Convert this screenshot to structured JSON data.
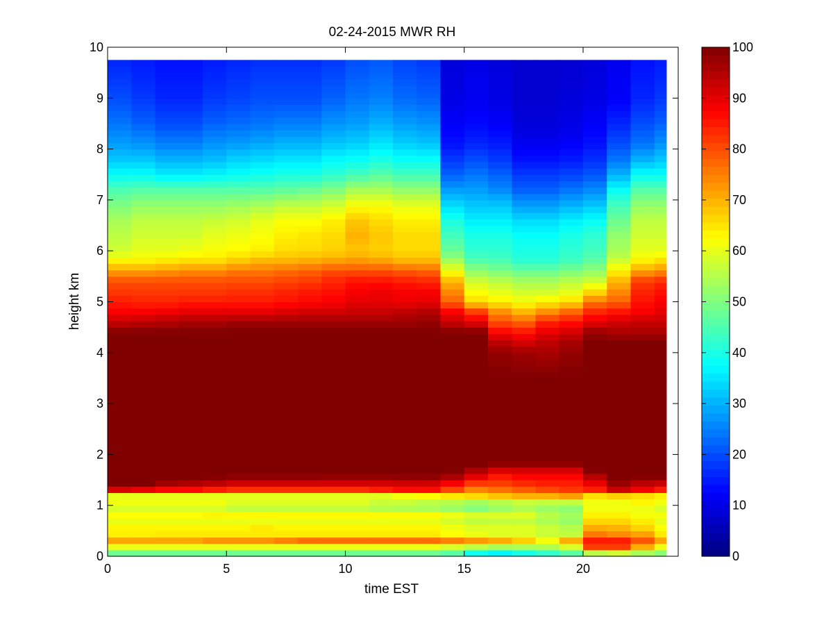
{
  "chart_data": {
    "type": "heatmap",
    "title": "02-24-2015 MWR RH",
    "xlabel": "time EST",
    "ylabel": "height km",
    "xlim": [
      0,
      24
    ],
    "ylim": [
      0,
      10
    ],
    "x_ticks": [
      0,
      5,
      10,
      15,
      20
    ],
    "y_ticks": [
      0,
      1,
      2,
      3,
      4,
      5,
      6,
      7,
      8,
      9,
      10
    ],
    "colormap": "jet",
    "color_range": [
      0,
      100
    ],
    "colorbar_ticks": [
      0,
      10,
      20,
      30,
      40,
      50,
      60,
      70,
      80,
      90,
      100
    ],
    "data_extent": {
      "x_max": 23.5,
      "y_max": 9.75
    },
    "x": [
      0,
      1,
      2,
      3,
      4,
      5,
      6,
      7,
      8,
      9,
      10,
      11,
      12,
      13,
      14,
      15,
      16,
      17,
      18,
      19,
      20,
      21,
      22,
      23
    ],
    "profile_heights": [
      0,
      0.1,
      0.2,
      0.3,
      0.4,
      0.5,
      0.6,
      0.7,
      0.8,
      0.9,
      1.0,
      1.1,
      1.2,
      1.3,
      1.4,
      1.5,
      1.6,
      1.7,
      1.8,
      1.9,
      2.0,
      2.5,
      3.0,
      3.5,
      4.0,
      4.2,
      4.4,
      4.6,
      4.8,
      5.0,
      5.2,
      5.4,
      5.6,
      5.8,
      6.0,
      6.3,
      6.6,
      6.9,
      7.2,
      7.5,
      7.8,
      8.1,
      8.5,
      9.0,
      9.75
    ],
    "series": [
      {
        "x": 0,
        "rh": [
          42,
          52,
          62,
          72,
          65,
          62,
          64,
          60,
          63,
          58,
          60,
          62,
          60,
          90,
          100,
          100,
          100,
          100,
          100,
          100,
          100,
          100,
          100,
          100,
          100,
          100,
          100,
          93,
          88,
          85,
          82,
          80,
          72,
          64,
          58,
          56,
          54,
          50,
          45,
          38,
          32,
          28,
          24,
          20,
          16
        ]
      },
      {
        "x": 1,
        "rh": [
          42,
          52,
          62,
          72,
          65,
          62,
          64,
          60,
          63,
          58,
          60,
          62,
          60,
          88,
          100,
          100,
          100,
          100,
          100,
          100,
          100,
          100,
          100,
          100,
          100,
          100,
          100,
          94,
          88,
          84,
          82,
          80,
          72,
          64,
          60,
          58,
          56,
          52,
          46,
          38,
          32,
          27,
          22,
          18,
          15
        ]
      },
      {
        "x": 2,
        "rh": [
          42,
          52,
          62,
          72,
          66,
          62,
          64,
          60,
          63,
          58,
          60,
          62,
          60,
          86,
          95,
          100,
          100,
          100,
          100,
          100,
          100,
          100,
          100,
          100,
          100,
          100,
          100,
          95,
          89,
          84,
          82,
          80,
          73,
          65,
          60,
          58,
          56,
          52,
          46,
          36,
          30,
          25,
          20,
          16,
          14
        ]
      },
      {
        "x": 3,
        "rh": [
          42,
          52,
          62,
          72,
          66,
          62,
          64,
          60,
          63,
          58,
          60,
          62,
          60,
          86,
          93,
          100,
          100,
          100,
          100,
          100,
          100,
          100,
          100,
          100,
          100,
          100,
          100,
          96,
          90,
          85,
          82,
          80,
          74,
          66,
          61,
          58,
          56,
          52,
          46,
          36,
          30,
          25,
          20,
          16,
          14
        ]
      },
      {
        "x": 4,
        "rh": [
          42,
          52,
          62,
          74,
          66,
          62,
          64,
          60,
          64,
          58,
          60,
          62,
          60,
          84,
          92,
          98,
          100,
          100,
          100,
          100,
          100,
          100,
          100,
          100,
          100,
          100,
          100,
          96,
          90,
          85,
          82,
          80,
          74,
          66,
          62,
          60,
          57,
          52,
          46,
          37,
          31,
          27,
          22,
          18,
          15
        ]
      },
      {
        "x": 5,
        "rh": [
          42,
          52,
          62,
          74,
          66,
          62,
          64,
          60,
          64,
          56,
          58,
          60,
          60,
          82,
          90,
          96,
          100,
          100,
          100,
          100,
          100,
          100,
          100,
          100,
          100,
          100,
          100,
          97,
          90,
          85,
          83,
          80,
          76,
          68,
          63,
          61,
          58,
          53,
          46,
          38,
          33,
          28,
          23,
          19,
          16
        ]
      },
      {
        "x": 6,
        "rh": [
          42,
          52,
          62,
          74,
          66,
          62,
          66,
          60,
          64,
          56,
          58,
          60,
          60,
          82,
          90,
          96,
          100,
          100,
          100,
          100,
          100,
          100,
          100,
          100,
          100,
          100,
          100,
          97,
          90,
          85,
          83,
          80,
          76,
          70,
          64,
          62,
          60,
          54,
          46,
          39,
          34,
          29,
          24,
          20,
          17
        ]
      },
      {
        "x": 7,
        "rh": [
          42,
          52,
          62,
          76,
          66,
          62,
          64,
          60,
          64,
          56,
          58,
          60,
          60,
          82,
          90,
          96,
          100,
          100,
          100,
          100,
          100,
          100,
          100,
          100,
          100,
          100,
          100,
          97,
          91,
          86,
          84,
          81,
          77,
          70,
          66,
          64,
          62,
          56,
          47,
          40,
          35,
          30,
          25,
          20,
          17
        ]
      },
      {
        "x": 8,
        "rh": [
          42,
          52,
          62,
          78,
          66,
          62,
          64,
          60,
          64,
          56,
          58,
          60,
          60,
          82,
          90,
          96,
          100,
          100,
          100,
          100,
          100,
          100,
          100,
          100,
          100,
          100,
          100,
          97,
          92,
          87,
          85,
          82,
          78,
          71,
          66,
          65,
          62,
          56,
          48,
          40,
          35,
          30,
          25,
          20,
          17
        ]
      },
      {
        "x": 9,
        "rh": [
          42,
          52,
          62,
          78,
          66,
          62,
          64,
          60,
          64,
          56,
          58,
          60,
          60,
          82,
          90,
          95,
          100,
          100,
          100,
          100,
          100,
          100,
          100,
          100,
          100,
          100,
          100,
          97,
          92,
          88,
          86,
          84,
          80,
          72,
          67,
          66,
          64,
          58,
          50,
          42,
          37,
          32,
          27,
          22,
          18
        ]
      },
      {
        "x": 10,
        "rh": [
          42,
          52,
          62,
          78,
          66,
          62,
          64,
          60,
          64,
          56,
          58,
          60,
          60,
          82,
          90,
          95,
          100,
          100,
          100,
          100,
          100,
          100,
          100,
          100,
          100,
          100,
          100,
          97,
          93,
          90,
          88,
          86,
          80,
          73,
          68,
          70,
          68,
          62,
          54,
          44,
          38,
          33,
          28,
          24,
          20
        ]
      },
      {
        "x": 11,
        "rh": [
          42,
          52,
          62,
          78,
          66,
          62,
          64,
          60,
          64,
          55,
          56,
          58,
          60,
          84,
          90,
          95,
          100,
          100,
          100,
          100,
          100,
          100,
          100,
          100,
          100,
          100,
          100,
          97,
          93,
          90,
          89,
          86,
          80,
          72,
          67,
          68,
          66,
          62,
          54,
          46,
          40,
          35,
          30,
          25,
          21
        ]
      },
      {
        "x": 12,
        "rh": [
          42,
          52,
          62,
          78,
          66,
          62,
          64,
          60,
          64,
          54,
          56,
          58,
          62,
          86,
          90,
          96,
          100,
          100,
          100,
          100,
          100,
          100,
          100,
          100,
          100,
          100,
          100,
          97,
          94,
          89,
          88,
          85,
          79,
          70,
          66,
          66,
          64,
          60,
          52,
          44,
          38,
          33,
          28,
          23,
          19
        ]
      },
      {
        "x": 13,
        "rh": [
          42,
          52,
          62,
          78,
          66,
          62,
          64,
          60,
          64,
          54,
          55,
          56,
          64,
          86,
          90,
          96,
          100,
          100,
          100,
          100,
          100,
          100,
          100,
          100,
          100,
          100,
          100,
          98,
          95,
          90,
          88,
          84,
          78,
          70,
          66,
          66,
          64,
          60,
          52,
          44,
          38,
          32,
          27,
          22,
          18
        ]
      },
      {
        "x": 14,
        "rh": [
          40,
          50,
          60,
          76,
          64,
          60,
          62,
          58,
          62,
          52,
          54,
          56,
          66,
          80,
          86,
          92,
          98,
          100,
          100,
          100,
          100,
          100,
          100,
          100,
          100,
          100,
          100,
          93,
          88,
          78,
          74,
          70,
          62,
          54,
          48,
          44,
          40,
          34,
          28,
          22,
          18,
          14,
          12,
          10,
          9
        ]
      },
      {
        "x": 15,
        "rh": [
          30,
          44,
          58,
          74,
          62,
          58,
          60,
          56,
          60,
          50,
          52,
          54,
          68,
          74,
          80,
          86,
          92,
          96,
          100,
          100,
          100,
          100,
          100,
          100,
          100,
          100,
          100,
          90,
          82,
          66,
          62,
          58,
          52,
          46,
          42,
          40,
          36,
          32,
          28,
          24,
          20,
          16,
          13,
          11,
          10
        ]
      },
      {
        "x": 16,
        "rh": [
          28,
          42,
          56,
          72,
          60,
          58,
          60,
          56,
          60,
          52,
          54,
          56,
          70,
          76,
          80,
          84,
          86,
          92,
          98,
          100,
          100,
          100,
          100,
          100,
          98,
          94,
          88,
          80,
          74,
          64,
          60,
          56,
          50,
          45,
          42,
          40,
          36,
          32,
          26,
          22,
          18,
          15,
          12,
          10,
          9
        ]
      },
      {
        "x": 17,
        "rh": [
          32,
          44,
          56,
          68,
          60,
          58,
          60,
          56,
          60,
          54,
          56,
          58,
          72,
          78,
          82,
          86,
          88,
          92,
          98,
          100,
          100,
          100,
          100,
          100,
          97,
          92,
          86,
          78,
          70,
          62,
          58,
          54,
          48,
          42,
          40,
          38,
          34,
          28,
          22,
          18,
          14,
          11,
          9,
          8,
          8
        ]
      },
      {
        "x": 18,
        "rh": [
          36,
          46,
          56,
          62,
          58,
          56,
          58,
          54,
          56,
          52,
          54,
          58,
          72,
          80,
          84,
          86,
          88,
          92,
          98,
          100,
          100,
          100,
          100,
          100,
          96,
          94,
          90,
          84,
          74,
          64,
          58,
          54,
          48,
          42,
          40,
          38,
          34,
          28,
          22,
          18,
          14,
          11,
          9,
          8,
          8
        ]
      },
      {
        "x": 19,
        "rh": [
          40,
          50,
          60,
          72,
          58,
          54,
          56,
          52,
          54,
          50,
          54,
          58,
          74,
          82,
          84,
          86,
          88,
          92,
          98,
          100,
          100,
          100,
          100,
          100,
          98,
          96,
          92,
          86,
          78,
          66,
          60,
          56,
          50,
          44,
          42,
          40,
          36,
          30,
          24,
          19,
          15,
          12,
          10,
          9,
          8
        ]
      },
      {
        "x": 20,
        "rh": [
          42,
          64,
          84,
          86,
          78,
          72,
          70,
          66,
          64,
          62,
          60,
          62,
          66,
          84,
          88,
          92,
          96,
          100,
          100,
          100,
          100,
          100,
          100,
          100,
          100,
          100,
          98,
          90,
          84,
          76,
          66,
          58,
          52,
          47,
          44,
          42,
          38,
          32,
          26,
          21,
          17,
          14,
          12,
          10,
          9
        ]
      },
      {
        "x": 21,
        "rh": [
          44,
          66,
          84,
          86,
          76,
          70,
          70,
          66,
          64,
          62,
          60,
          62,
          68,
          92,
          96,
          100,
          100,
          100,
          100,
          100,
          100,
          100,
          100,
          100,
          100,
          100,
          96,
          92,
          86,
          78,
          74,
          70,
          64,
          58,
          54,
          52,
          48,
          44,
          38,
          30,
          24,
          20,
          16,
          12,
          11
        ]
      },
      {
        "x": 22,
        "rh": [
          44,
          60,
          72,
          80,
          74,
          68,
          66,
          64,
          62,
          60,
          62,
          64,
          66,
          88,
          92,
          98,
          100,
          100,
          100,
          100,
          100,
          100,
          100,
          100,
          100,
          100,
          96,
          93,
          88,
          86,
          84,
          82,
          72,
          64,
          60,
          58,
          56,
          52,
          46,
          38,
          30,
          24,
          20,
          16,
          14
        ]
      },
      {
        "x": 23,
        "rh": [
          46,
          54,
          62,
          72,
          66,
          62,
          62,
          60,
          62,
          58,
          60,
          62,
          64,
          84,
          90,
          98,
          100,
          100,
          100,
          100,
          100,
          100,
          100,
          100,
          100,
          100,
          96,
          93,
          90,
          88,
          86,
          84,
          74,
          66,
          60,
          58,
          56,
          52,
          46,
          38,
          32,
          27,
          22,
          18,
          15
        ]
      }
    ]
  }
}
